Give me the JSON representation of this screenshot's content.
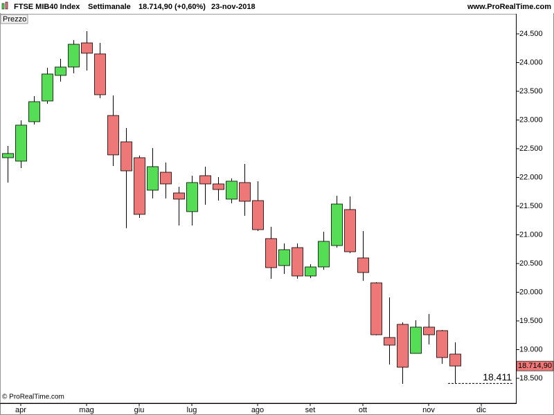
{
  "chart_data": {
    "type": "candlestick",
    "title": "FTSE MIB40 Index",
    "subtitle": "Settimanale",
    "last_quote": "18.714,90 (+0,60%)",
    "date": "23-nov-2018",
    "site": "www.ProRealTime.com",
    "panel_label": "Prezzo",
    "copyright": "© ProRealTime.com",
    "up_color": "#55dd55",
    "down_color": "#ee7777",
    "categories": [
      null,
      "apr",
      null,
      null,
      null,
      null,
      "mag",
      null,
      null,
      null,
      "giu",
      null,
      null,
      null,
      "lug",
      null,
      null,
      null,
      null,
      "ago",
      null,
      null,
      null,
      "set",
      null,
      null,
      null,
      "ott",
      null,
      null,
      null,
      null,
      "nov",
      null,
      null,
      null,
      "dic"
    ],
    "open": [
      22343,
      22283,
      22970,
      23331,
      23777,
      23922,
      24343,
      24151,
      23078,
      22620,
      22343,
      21777,
      22090,
      21729,
      21404,
      22030,
      21886,
      21621,
      21910,
      21596,
      20934,
      20464,
      20777,
      20283,
      20440,
      20813,
      21440,
      20597,
      20163,
      19211,
      19440,
      18934,
      19392,
      19331,
      18922,
      null,
      null
    ],
    "high": [
      22548,
      22994,
      23416,
      23910,
      24066,
      24392,
      24548,
      24343,
      23428,
      22861,
      22380,
      22512,
      22259,
      21837,
      22030,
      22187,
      22006,
      21982,
      22235,
      21934,
      21139,
      20850,
      20850,
      20488,
      21054,
      21681,
      21669,
      21066,
      20175,
      19910,
      19476,
      19512,
      19621,
      19343,
      19127,
      null,
      null
    ],
    "low": [
      21910,
      22163,
      22922,
      23283,
      23669,
      23813,
      23861,
      23380,
      22199,
      21115,
      21295,
      21633,
      21633,
      21163,
      21163,
      21524,
      21596,
      21548,
      21331,
      21066,
      20235,
      20319,
      20235,
      20247,
      20392,
      20777,
      20681,
      20199,
      19250,
      18741,
      18404,
      18934,
      19090,
      18753,
      18411,
      null,
      null
    ],
    "close": [
      22416,
      22910,
      23319,
      23801,
      23922,
      24319,
      24163,
      23440,
      22392,
      22114,
      21356,
      22187,
      21886,
      21621,
      21910,
      21886,
      21789,
      21934,
      21584,
      21090,
      20428,
      20741,
      20283,
      20440,
      20886,
      21536,
      20705,
      20343,
      19259,
      19078,
      18693,
      19392,
      19259,
      18862,
      18714.9,
      null,
      null
    ],
    "last_price": {
      "value": 18714.9,
      "label": "18.714,90"
    },
    "low_marker": {
      "value": 18411,
      "label": "18.411"
    },
    "ylim": [
      18066,
      24849
    ],
    "yticks": [
      {
        "value": 18500,
        "label": "18.500"
      },
      {
        "value": 19000,
        "label": "19.000"
      },
      {
        "value": 19500,
        "label": "19.500"
      },
      {
        "value": 20000,
        "label": "20.000"
      },
      {
        "value": 20500,
        "label": "20.500"
      },
      {
        "value": 21000,
        "label": "21.000"
      },
      {
        "value": 21500,
        "label": "21.500"
      },
      {
        "value": 22000,
        "label": "22.000"
      },
      {
        "value": 22500,
        "label": "22.500"
      },
      {
        "value": 23000,
        "label": "23.000"
      },
      {
        "value": 23500,
        "label": "23.500"
      },
      {
        "value": 24000,
        "label": "24.000"
      },
      {
        "value": 24500,
        "label": "24.500"
      }
    ]
  }
}
